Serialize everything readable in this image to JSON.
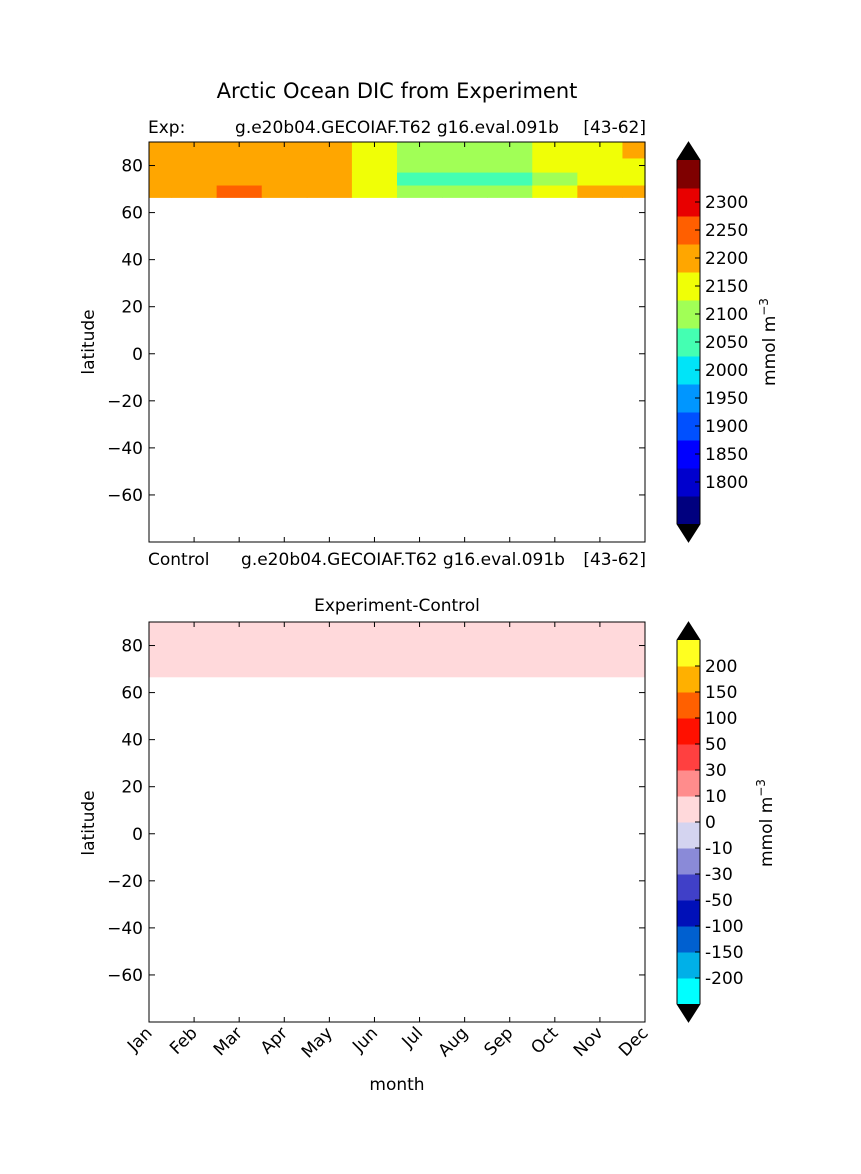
{
  "figure": {
    "title": "Arctic Ocean DIC from Experiment",
    "colors": {
      "axis": "#000000",
      "background": "#ffffff",
      "contour_line": "#333333"
    }
  },
  "chart_data": [
    {
      "type": "heatmap",
      "title": "",
      "label_left": "Exp:",
      "label_center": "g.e20b04.GECOIAF.T62 g16.eval.091b",
      "label_right": "[43-62]",
      "ylabel": "latitude",
      "xlabel": "",
      "xlim": [
        0,
        11
      ],
      "ylim": [
        -80,
        90
      ],
      "y_ticks": [
        80,
        60,
        40,
        20,
        0,
        -20,
        -40,
        -60
      ],
      "y_tick_labels": [
        "80",
        "60",
        "40",
        "20",
        "0",
        "−20",
        "−40",
        "−60"
      ],
      "x": [
        0,
        1,
        2,
        3,
        4,
        5,
        6,
        7,
        8,
        9,
        10,
        11
      ],
      "data_lat_range": [
        66.5,
        90
      ],
      "data_approx_rows": [
        {
          "lat": 86,
          "values": [
            2160,
            2160,
            2160,
            2160,
            2155,
            2120,
            2080,
            2060,
            2070,
            2110,
            2130,
            2160
          ]
        },
        {
          "lat": 80,
          "values": [
            2160,
            2160,
            2160,
            2160,
            2160,
            2120,
            2075,
            2050,
            2065,
            2110,
            2130,
            2140
          ]
        },
        {
          "lat": 74,
          "values": [
            2160,
            2160,
            2160,
            2160,
            2160,
            2130,
            2040,
            2020,
            2040,
            2080,
            2100,
            2110
          ]
        },
        {
          "lat": 69,
          "values": [
            2170,
            2190,
            2200,
            2185,
            2165,
            2130,
            2080,
            2070,
            2080,
            2110,
            2150,
            2170
          ]
        }
      ],
      "colorbar": {
        "label": "mmol m",
        "label_sup": "−3",
        "tick_labels": [
          "2300",
          "2250",
          "2200",
          "2150",
          "2100",
          "2050",
          "2000",
          "1950",
          "1900",
          "1850",
          "1800"
        ],
        "levels": [
          1750,
          1775,
          1800,
          1850,
          1900,
          1950,
          2000,
          2050,
          2100,
          2150,
          2200,
          2250,
          2300,
          2325
        ],
        "colors": [
          "#00007f",
          "#0000cd",
          "#0000ff",
          "#0050ff",
          "#0096ff",
          "#00e4f8",
          "#44ffb2",
          "#a1ff56",
          "#f0ff06",
          "#ffa600",
          "#ff5f00",
          "#e80000",
          "#7f0000"
        ],
        "extend_color": "#000000"
      }
    },
    {
      "type": "heatmap",
      "title": "Experiment-Control",
      "label_left": "Control",
      "label_center": "g.e20b04.GECOIAF.T62 g16.eval.091b",
      "label_right": "[43-62]",
      "ylabel": "latitude",
      "xlabel": "month",
      "xlim": [
        0,
        11
      ],
      "ylim": [
        -80,
        90
      ],
      "y_ticks": [
        80,
        60,
        40,
        20,
        0,
        -20,
        -40,
        -60
      ],
      "y_tick_labels": [
        "80",
        "60",
        "40",
        "20",
        "0",
        "−20",
        "−40",
        "−60"
      ],
      "x_tick_labels": [
        "Jan",
        "Feb",
        "Mar",
        "Apr",
        "May",
        "Jun",
        "Jul",
        "Aug",
        "Sep",
        "Oct",
        "Nov",
        "Dec"
      ],
      "data_lat_range": [
        66.5,
        90
      ],
      "data_value": 5,
      "data_color": "#ffd9db",
      "colorbar": {
        "label": "mmol m",
        "label_sup": "−3",
        "tick_labels": [
          "200",
          "150",
          "100",
          "50",
          "30",
          "10",
          "0",
          "-10",
          "-30",
          "-50",
          "-100",
          "-150",
          "-200"
        ],
        "colors": [
          "#00ffff",
          "#00b0e8",
          "#0060d0",
          "#0010b8",
          "#4040c8",
          "#8a8ad8",
          "#d4d4f0",
          "#ffd9db",
          "#ff8c8c",
          "#ff4040",
          "#ff1000",
          "#ff6000",
          "#ffb000",
          "#ffff20"
        ],
        "extend_color": "#000000"
      }
    }
  ]
}
